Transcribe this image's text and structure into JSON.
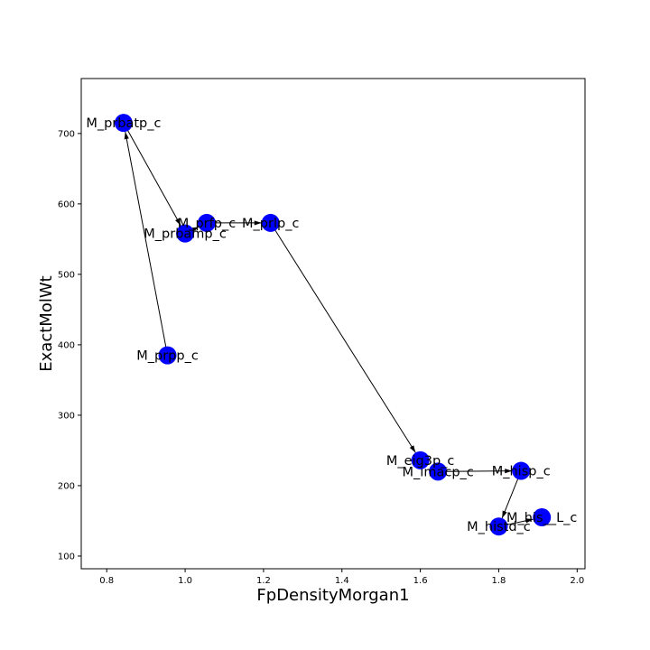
{
  "chart_data": {
    "type": "scatter",
    "title": "",
    "xlabel": "FpDensityMorgan1",
    "ylabel": "ExactMolWt",
    "xlim": [
      0.735,
      2.02
    ],
    "ylim": [
      82,
      778
    ],
    "xticks": [
      0.8,
      1.0,
      1.2,
      1.4,
      1.6,
      1.8,
      2.0
    ],
    "xtick_labels": [
      "0.8",
      "1.0",
      "1.2",
      "1.4",
      "1.6",
      "1.8",
      "2.0"
    ],
    "yticks": [
      100,
      200,
      300,
      400,
      500,
      600,
      700
    ],
    "ytick_labels": [
      "100",
      "200",
      "300",
      "400",
      "500",
      "600",
      "700"
    ],
    "grid": false,
    "node_color": "#0000ff",
    "edge_color": "#000000",
    "nodes": [
      {
        "label": "M_prpp_c",
        "x": 0.955,
        "y": 385
      },
      {
        "label": "M_prbatp_c",
        "x": 0.843,
        "y": 715
      },
      {
        "label": "M_prbamp_c",
        "x": 1.0,
        "y": 558
      },
      {
        "label": "M_prfp_c",
        "x": 1.055,
        "y": 573
      },
      {
        "label": "M_prlp_c",
        "x": 1.218,
        "y": 573
      },
      {
        "label": "M_eig3p_c",
        "x": 1.6,
        "y": 236
      },
      {
        "label": "M_imacp_c",
        "x": 1.645,
        "y": 220
      },
      {
        "label": "M_hisp_c",
        "x": 1.857,
        "y": 221
      },
      {
        "label": "M_histd_c",
        "x": 1.8,
        "y": 142
      },
      {
        "label": "M_his__L_c",
        "x": 1.91,
        "y": 155
      }
    ],
    "edges": [
      {
        "from": "M_prpp_c",
        "to": "M_prbatp_c"
      },
      {
        "from": "M_prbatp_c",
        "to": "M_prbamp_c"
      },
      {
        "from": "M_prbamp_c",
        "to": "M_prfp_c"
      },
      {
        "from": "M_prfp_c",
        "to": "M_prlp_c"
      },
      {
        "from": "M_prlp_c",
        "to": "M_eig3p_c"
      },
      {
        "from": "M_imacp_c",
        "to": "M_hisp_c"
      },
      {
        "from": "M_hisp_c",
        "to": "M_histd_c"
      },
      {
        "from": "M_histd_c",
        "to": "M_his__L_c"
      }
    ]
  }
}
